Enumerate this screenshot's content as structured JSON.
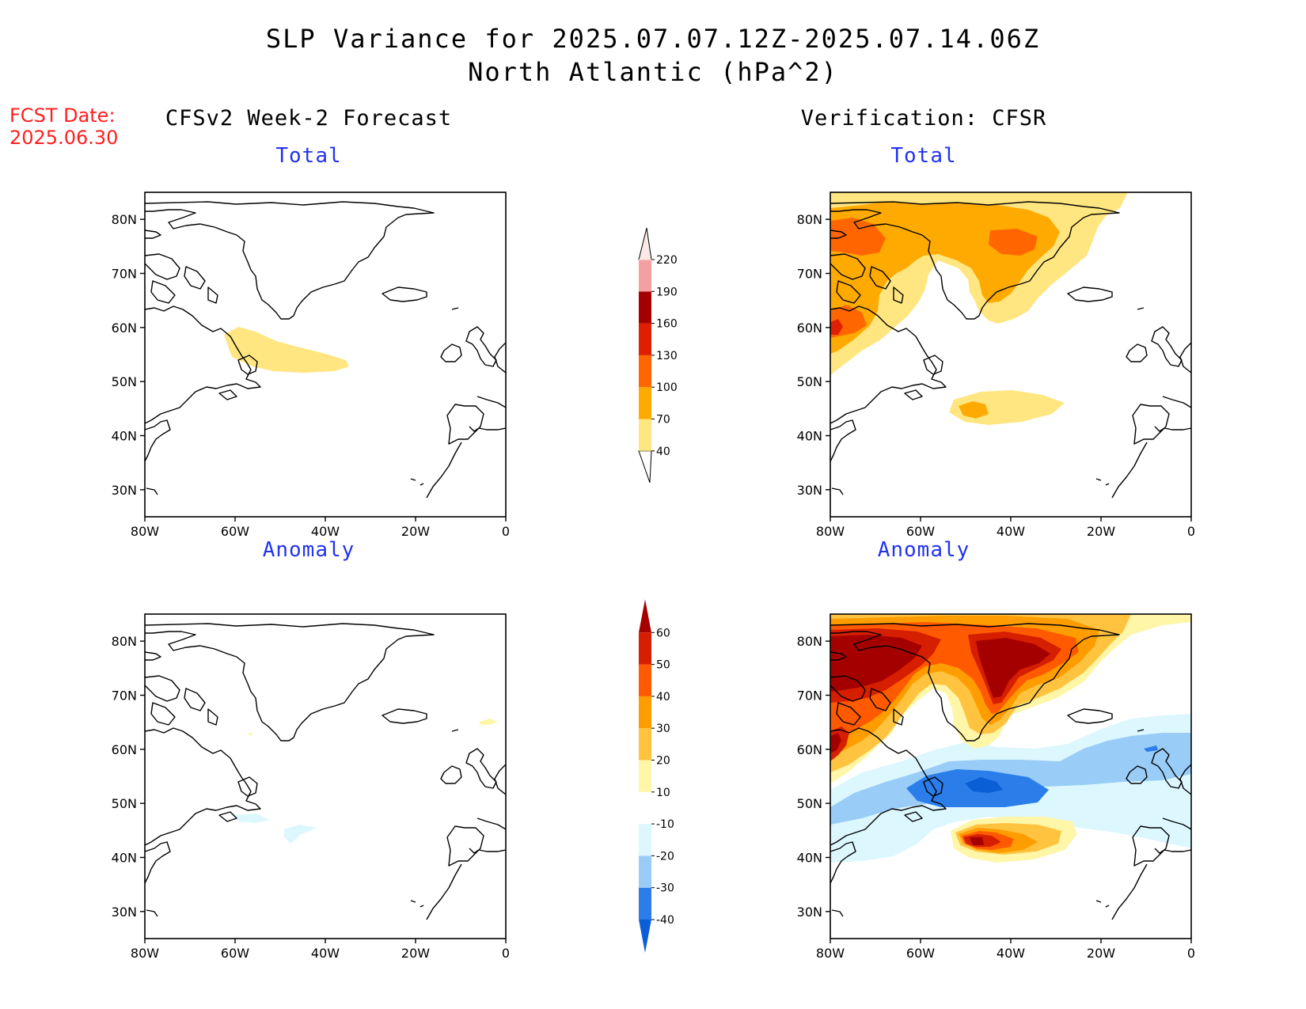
{
  "title": {
    "line1": "SLP Variance for 2025.07.07.12Z-2025.07.14.06Z",
    "line2": "North Atlantic (hPa^2)"
  },
  "forecast_date": {
    "label": "FCST Date:",
    "value": "2025.06.30"
  },
  "columns": {
    "left": "CFSv2 Week-2 Forecast",
    "right": "Verification: CFSR"
  },
  "panels": {
    "total_label": "Total",
    "anomaly_label": "Anomaly"
  },
  "map": {
    "lat_labels": [
      "80N",
      "70N",
      "60N",
      "50N",
      "40N",
      "30N"
    ],
    "lon_labels": [
      "80W",
      "60W",
      "40W",
      "20W",
      "0"
    ],
    "lat_range": [
      25,
      85
    ],
    "lon_range": [
      -80,
      0
    ]
  },
  "colorbars": {
    "total": {
      "ticks": [
        "40",
        "70",
        "100",
        "130",
        "160",
        "190",
        "220"
      ],
      "colors": [
        "#ffe680",
        "#ffaa00",
        "#ff6600",
        "#e01f00",
        "#a50000",
        "#f4a0a0",
        "#fde8e8"
      ]
    },
    "anomaly": {
      "ticks": [
        "-40",
        "-30",
        "-20",
        "-10",
        "10",
        "20",
        "30",
        "40",
        "50",
        "60"
      ],
      "colors": [
        "#0b5fd6",
        "#2b7de9",
        "#99cdf7",
        "#ddf7ff",
        "#ffffff",
        "#fff6a8",
        "#ffc340",
        "#ff9d00",
        "#ff5a00",
        "#d61e00",
        "#a50000"
      ]
    }
  }
}
